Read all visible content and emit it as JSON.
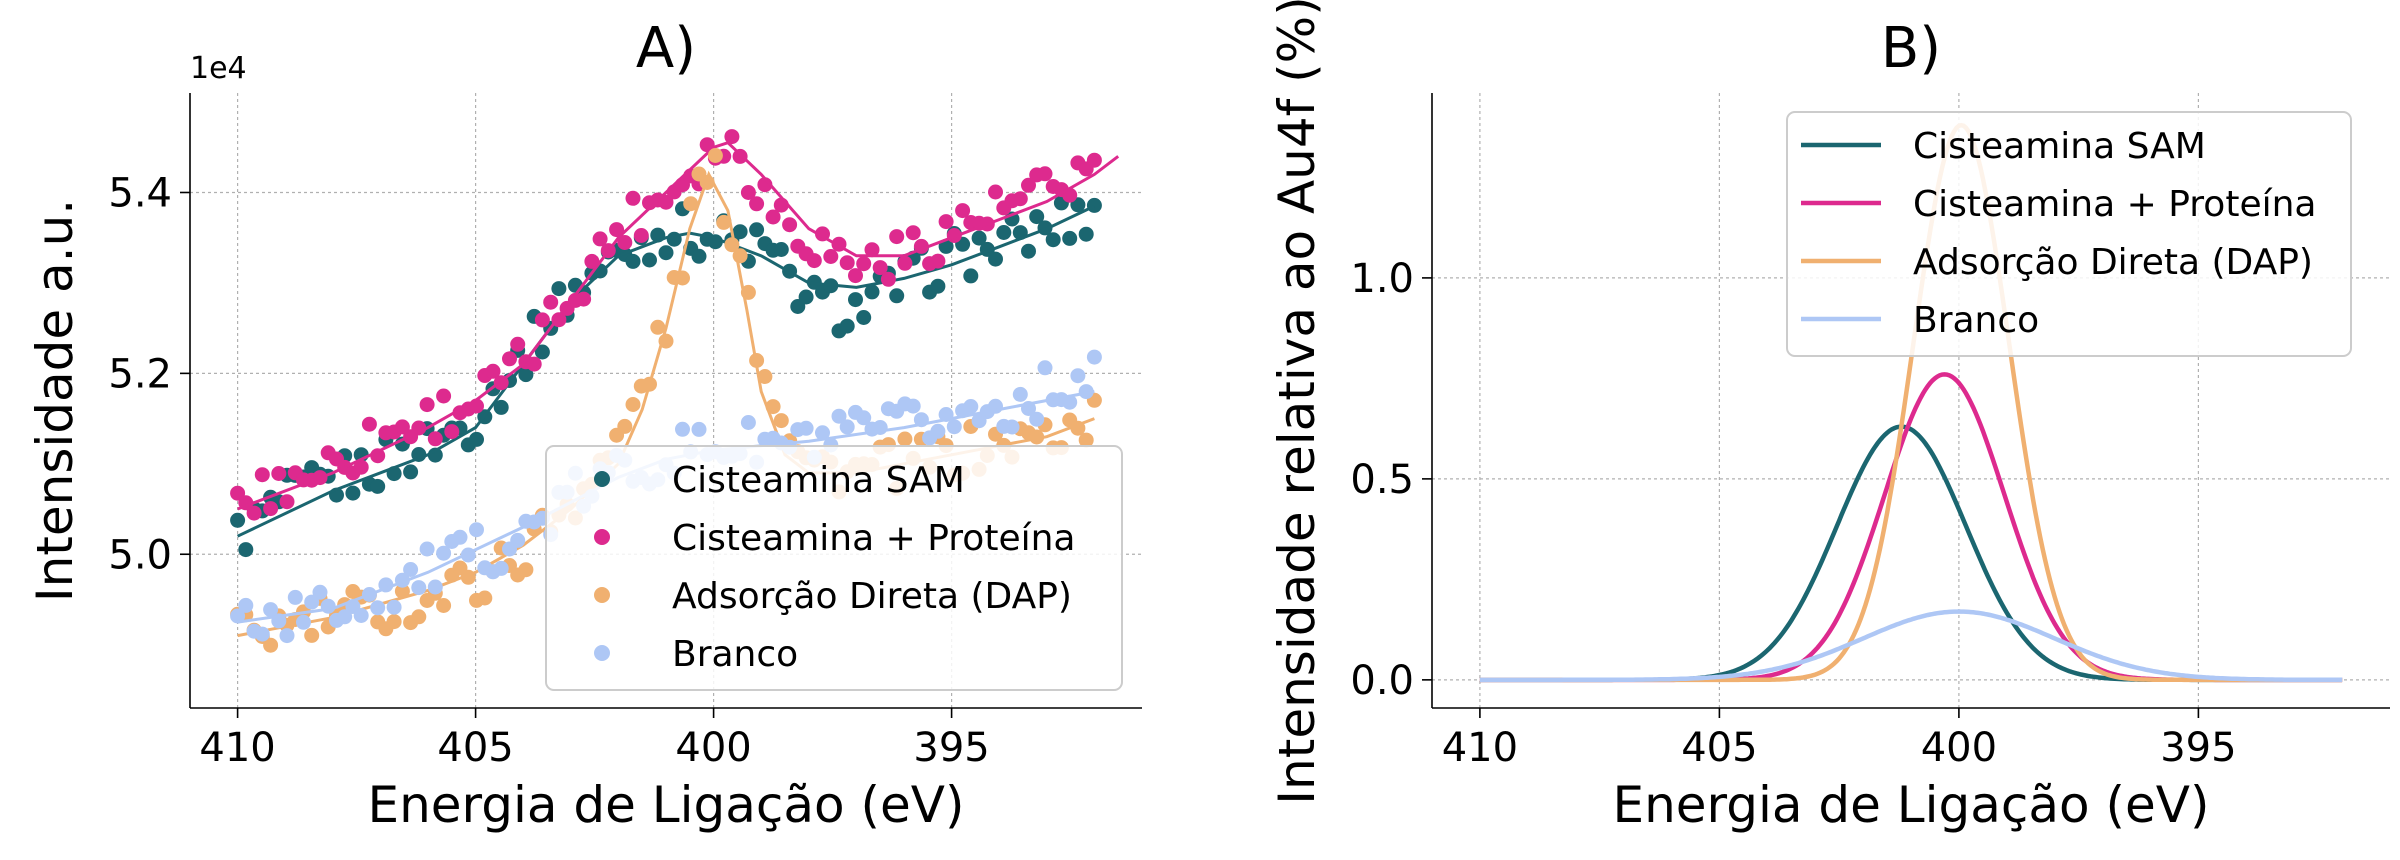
{
  "chart_data": [
    {
      "id": "A",
      "type": "scatter",
      "title": "A)",
      "xlabel": "Energia de Ligação (eV)",
      "ylabel": "Intensidade a.u.",
      "offset_text": "1e4",
      "xlim": [
        411,
        391
      ],
      "x_reversed": true,
      "ylim": [
        4.83,
        5.51
      ],
      "xticks": [
        410,
        405,
        400,
        395
      ],
      "xtick_labels": [
        "410",
        "405",
        "400",
        "395"
      ],
      "yticks": [
        5.0,
        5.2,
        5.4
      ],
      "ytick_labels": [
        "5.0",
        "5.2",
        "5.4"
      ],
      "grid": true,
      "legend_position": "lower-right",
      "series": [
        {
          "name": "Cisteamina SAM",
          "color": "#1b6670",
          "points": [
            [
              410,
              5.02
            ],
            [
              409,
              5.06
            ],
            [
              408,
              5.08
            ],
            [
              407,
              5.1
            ],
            [
              406,
              5.12
            ],
            [
              405,
              5.15
            ],
            [
              404,
              5.22
            ],
            [
              403,
              5.29
            ],
            [
              402,
              5.33
            ],
            [
              401,
              5.36
            ],
            [
              400,
              5.35
            ],
            [
              399,
              5.34
            ],
            [
              398,
              5.28
            ],
            [
              397,
              5.27
            ],
            [
              396,
              5.3
            ],
            [
              395,
              5.33
            ],
            [
              394,
              5.34
            ],
            [
              393,
              5.36
            ],
            [
              392,
              5.38
            ]
          ],
          "fit": [
            [
              410,
              5.02
            ],
            [
              408,
              5.07
            ],
            [
              406,
              5.11
            ],
            [
              405,
              5.14
            ],
            [
              404,
              5.21
            ],
            [
              403,
              5.28
            ],
            [
              402,
              5.33
            ],
            [
              401,
              5.35
            ],
            [
              400.5,
              5.355
            ],
            [
              400,
              5.35
            ],
            [
              399,
              5.33
            ],
            [
              398,
              5.3
            ],
            [
              397,
              5.295
            ],
            [
              396,
              5.305
            ],
            [
              395,
              5.32
            ],
            [
              394,
              5.34
            ],
            [
              393,
              5.36
            ],
            [
              392,
              5.385
            ]
          ]
        },
        {
          "name": "Cisteamina + Proteína",
          "color": "#dd2a8e",
          "points": [
            [
              410,
              5.05
            ],
            [
              409,
              5.08
            ],
            [
              408,
              5.1
            ],
            [
              407,
              5.13
            ],
            [
              406,
              5.15
            ],
            [
              405,
              5.17
            ],
            [
              404,
              5.21
            ],
            [
              403,
              5.29
            ],
            [
              402,
              5.36
            ],
            [
              401,
              5.4
            ],
            [
              400,
              5.45
            ],
            [
              399.5,
              5.45
            ],
            [
              399,
              5.4
            ],
            [
              398,
              5.35
            ],
            [
              397,
              5.32
            ],
            [
              396,
              5.33
            ],
            [
              395,
              5.36
            ],
            [
              394,
              5.38
            ],
            [
              393,
              5.4
            ],
            [
              392,
              5.43
            ],
            [
              391.5,
              5.45
            ]
          ],
          "fit": [
            [
              410,
              5.05
            ],
            [
              408,
              5.09
            ],
            [
              406,
              5.14
            ],
            [
              405,
              5.17
            ],
            [
              404,
              5.21
            ],
            [
              403,
              5.28
            ],
            [
              402,
              5.35
            ],
            [
              401,
              5.4
            ],
            [
              400,
              5.45
            ],
            [
              399.7,
              5.455
            ],
            [
              399,
              5.42
            ],
            [
              398,
              5.36
            ],
            [
              397,
              5.33
            ],
            [
              396,
              5.33
            ],
            [
              395,
              5.35
            ],
            [
              394,
              5.37
            ],
            [
              393,
              5.39
            ],
            [
              392,
              5.42
            ],
            [
              391.5,
              5.44
            ]
          ]
        },
        {
          "name": "Adsorção Direta (DAP)",
          "color": "#f0b070",
          "points": [
            [
              410,
              4.91
            ],
            [
              409,
              4.92
            ],
            [
              408,
              4.93
            ],
            [
              407,
              4.94
            ],
            [
              406,
              4.95
            ],
            [
              405,
              4.97
            ],
            [
              404,
              5.0
            ],
            [
              403,
              5.06
            ],
            [
              402,
              5.12
            ],
            [
              401,
              5.25
            ],
            [
              400.3,
              5.41
            ],
            [
              400,
              5.42
            ],
            [
              399.5,
              5.35
            ],
            [
              399,
              5.21
            ],
            [
              398,
              5.1
            ],
            [
              397,
              5.09
            ],
            [
              396,
              5.1
            ],
            [
              395,
              5.11
            ],
            [
              394,
              5.12
            ],
            [
              393,
              5.13
            ],
            [
              392,
              5.15
            ]
          ],
          "fit": [
            [
              410,
              4.91
            ],
            [
              408,
              4.93
            ],
            [
              406,
              4.96
            ],
            [
              405,
              4.98
            ],
            [
              404,
              5.01
            ],
            [
              403,
              5.05
            ],
            [
              402,
              5.1
            ],
            [
              401.5,
              5.16
            ],
            [
              401,
              5.25
            ],
            [
              400.5,
              5.36
            ],
            [
              400.1,
              5.42
            ],
            [
              399.7,
              5.38
            ],
            [
              399.3,
              5.27
            ],
            [
              399,
              5.18
            ],
            [
              398.5,
              5.11
            ],
            [
              398,
              5.09
            ],
            [
              397,
              5.09
            ],
            [
              396,
              5.1
            ],
            [
              395,
              5.11
            ],
            [
              394,
              5.12
            ],
            [
              393,
              5.13
            ],
            [
              392,
              5.15
            ]
          ]
        },
        {
          "name": "Branco",
          "color": "#aec7f5",
          "points": [
            [
              410,
              4.93
            ],
            [
              409,
              4.93
            ],
            [
              408,
              4.94
            ],
            [
              407,
              4.96
            ],
            [
              406,
              4.98
            ],
            [
              405,
              5.0
            ],
            [
              404,
              5.02
            ],
            [
              403,
              5.06
            ],
            [
              402,
              5.09
            ],
            [
              401,
              5.11
            ],
            [
              400,
              5.12
            ],
            [
              399,
              5.12
            ],
            [
              398,
              5.12
            ],
            [
              397,
              5.13
            ],
            [
              396,
              5.14
            ],
            [
              395,
              5.15
            ],
            [
              394,
              5.16
            ],
            [
              393,
              5.18
            ],
            [
              392,
              5.2
            ]
          ],
          "fit": [
            [
              410,
              4.925
            ],
            [
              408,
              4.94
            ],
            [
              406,
              4.98
            ],
            [
              404,
              5.03
            ],
            [
              402,
              5.085
            ],
            [
              401,
              5.105
            ],
            [
              400,
              5.115
            ],
            [
              399,
              5.12
            ],
            [
              398,
              5.125
            ],
            [
              396,
              5.14
            ],
            [
              394,
              5.16
            ],
            [
              392,
              5.18
            ]
          ]
        }
      ]
    },
    {
      "id": "B",
      "type": "line",
      "title": "B)",
      "xlabel": "Energia de Ligação (eV)",
      "ylabel": "Intensidade relativa ao Au4f (%)",
      "xlim": [
        411,
        391
      ],
      "x_reversed": true,
      "ylim": [
        -0.07,
        1.46
      ],
      "xticks": [
        410,
        405,
        400,
        395
      ],
      "xtick_labels": [
        "410",
        "405",
        "400",
        "395"
      ],
      "yticks": [
        0.0,
        0.5,
        1.0
      ],
      "ytick_labels": [
        "0.0",
        "0.5",
        "1.0"
      ],
      "grid": true,
      "legend_position": "top-right",
      "x_range": [
        410,
        392
      ],
      "series": [
        {
          "name": "Cisteamina SAM",
          "color": "#1b6670",
          "gaussian": {
            "center": 401.2,
            "amplitude": 0.63,
            "sigma": 1.35
          }
        },
        {
          "name": "Cisteamina + Proteína",
          "color": "#dd2a8e",
          "gaussian": {
            "center": 400.3,
            "amplitude": 0.76,
            "sigma": 1.25
          }
        },
        {
          "name": "Adsorção Direta (DAP)",
          "color": "#f0b070",
          "gaussian": {
            "center": 399.95,
            "amplitude": 1.38,
            "sigma": 1.0
          }
        },
        {
          "name": "Branco",
          "color": "#aec7f5",
          "gaussian": {
            "center": 400.0,
            "amplitude": 0.17,
            "sigma": 2.0
          }
        }
      ]
    }
  ]
}
